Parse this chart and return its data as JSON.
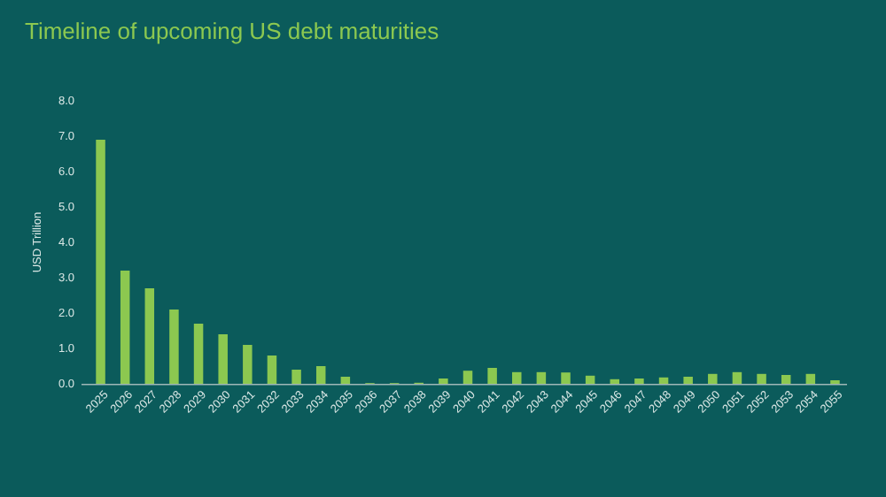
{
  "chart_data": {
    "type": "bar",
    "title": "Timeline of upcoming US debt maturities",
    "ylabel": "USD Trillion",
    "categories": [
      "2025",
      "2026",
      "2027",
      "2028",
      "2029",
      "2030",
      "2031",
      "2032",
      "2033",
      "2034",
      "2035",
      "2036",
      "2037",
      "2038",
      "2039",
      "2040",
      "2041",
      "2042",
      "2043",
      "2044",
      "2045",
      "2046",
      "2047",
      "2048",
      "2049",
      "2050",
      "2051",
      "2052",
      "2053",
      "2054",
      "2055"
    ],
    "values": [
      6.9,
      3.2,
      2.7,
      2.1,
      1.7,
      1.4,
      1.1,
      0.8,
      0.4,
      0.5,
      0.2,
      0.02,
      0.02,
      0.03,
      0.15,
      0.37,
      0.45,
      0.33,
      0.33,
      0.32,
      0.23,
      0.13,
      0.15,
      0.18,
      0.2,
      0.28,
      0.33,
      0.28,
      0.25,
      0.28,
      0.1
    ],
    "color": "#8cc850",
    "ylim": [
      0,
      8
    ],
    "yticks": [
      {
        "value": 0,
        "label": "0.0"
      },
      {
        "value": 1,
        "label": "1.0"
      },
      {
        "value": 2,
        "label": "2.0"
      },
      {
        "value": 3,
        "label": "3.0"
      },
      {
        "value": 4,
        "label": "4.0"
      },
      {
        "value": 5,
        "label": "5.0"
      },
      {
        "value": 6,
        "label": "6.0"
      },
      {
        "value": 7,
        "label": "7.0"
      },
      {
        "value": 8,
        "label": "8.0"
      }
    ]
  }
}
